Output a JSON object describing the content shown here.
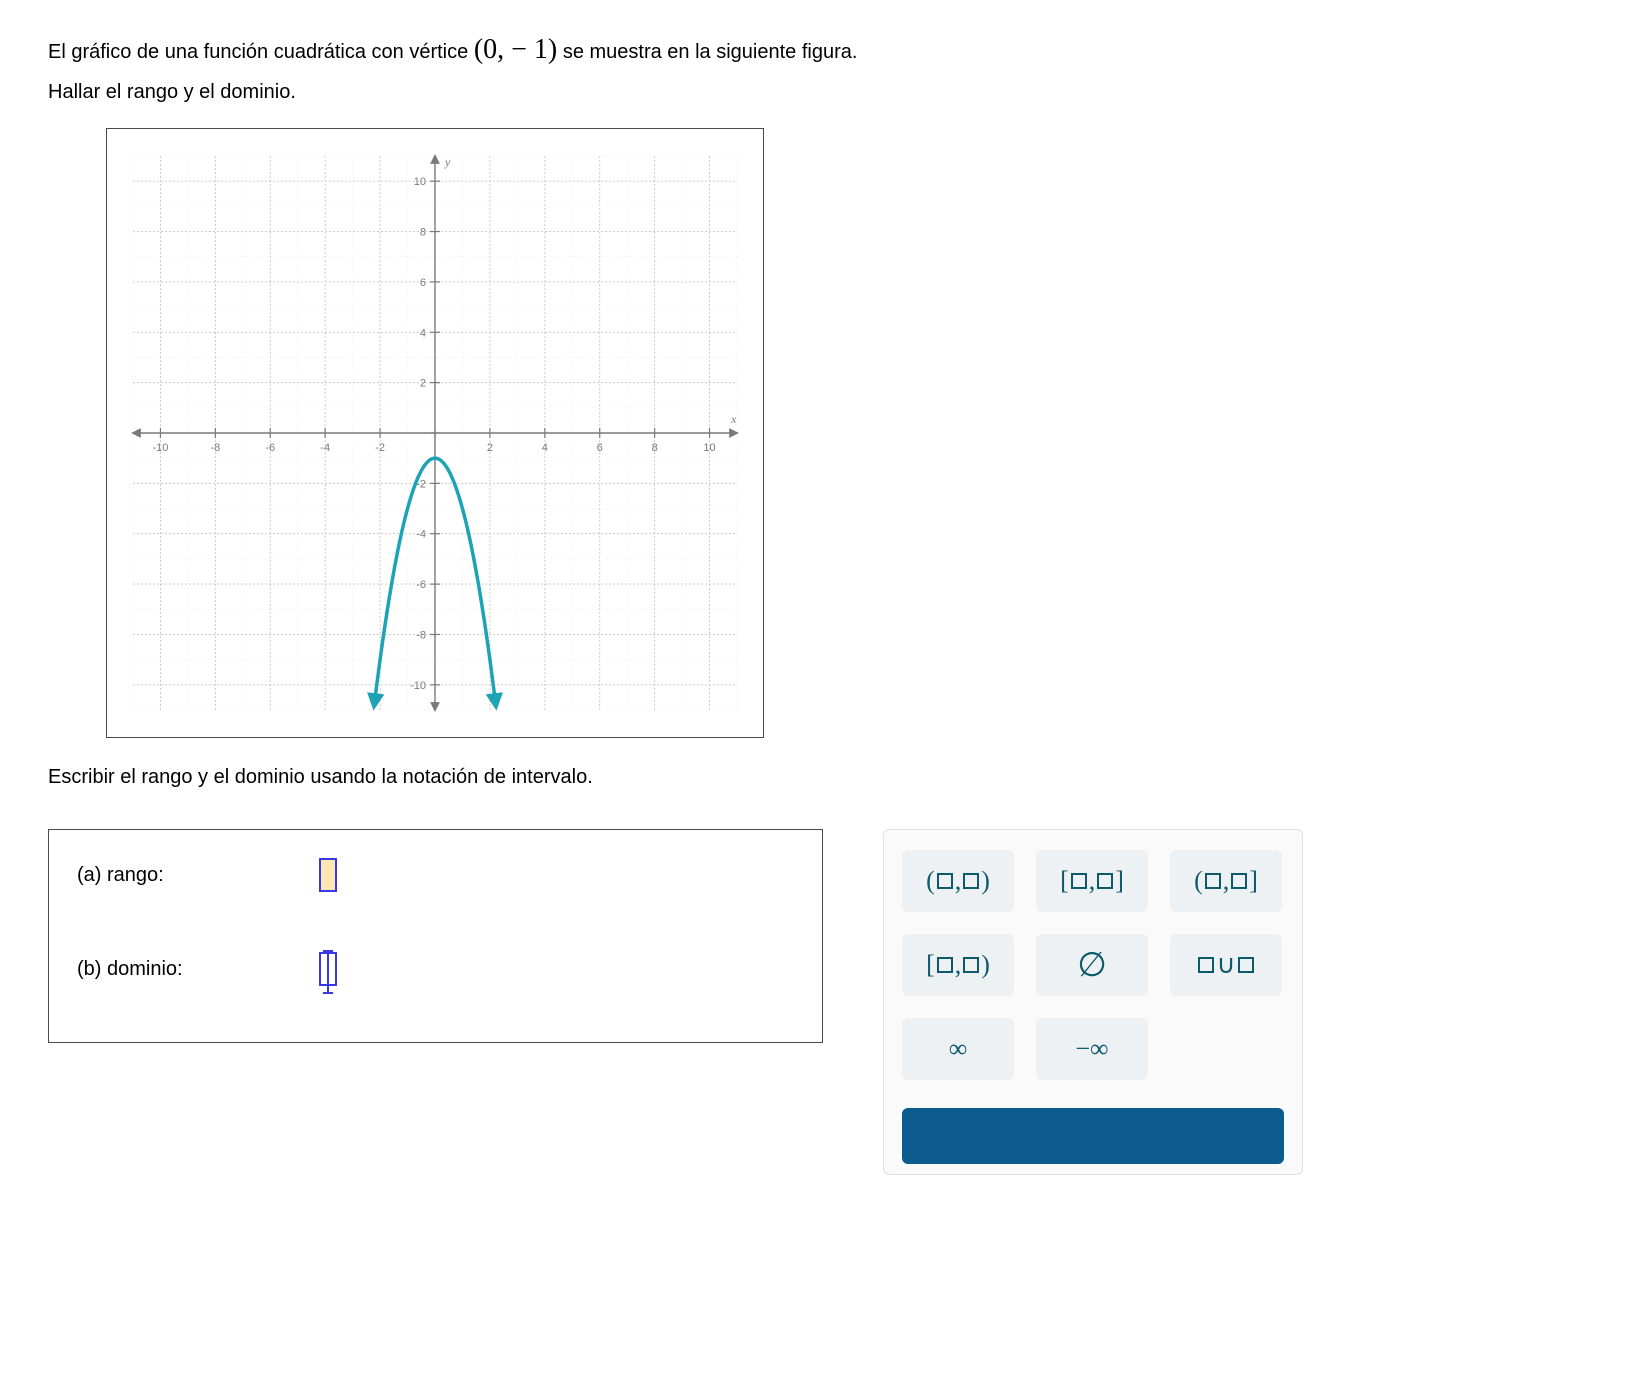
{
  "prompt": {
    "line1_pre": "El gráfico de una función cuadrática con vértice ",
    "vertex": "(0, − 1)",
    "line1_post": " se muestra en la siguiente figura.",
    "line2": "Hallar el rango y el dominio."
  },
  "instruction": "Escribir el rango y el dominio usando la notación de intervalo.",
  "answers": {
    "a_label": "(a)  rango:",
    "b_label": "(b)  dominio:"
  },
  "palette": {
    "open_open": "(□,□)",
    "closed_closed": "[□,□]",
    "open_closed": "(□,□]",
    "closed_open": "[□,□)",
    "empty_set": "∅",
    "union": "□∪□",
    "infinity": "∞",
    "neg_infinity": "−∞"
  },
  "chart": {
    "type": "scatter/line",
    "xlim": [
      -11,
      11
    ],
    "ylim": [
      -11,
      11
    ],
    "xtick_step": 2,
    "ytick_step": 2,
    "xtick_labels": [
      "-10",
      "-8",
      "-6",
      "-4",
      "-2",
      "2",
      "4",
      "6",
      "8",
      "10"
    ],
    "ytick_labels": [
      "-10",
      "-8",
      "-6",
      "-4",
      "-2",
      "2",
      "4",
      "6",
      "8",
      "10"
    ],
    "axis_label_x": "x",
    "axis_label_y": "y",
    "major_grid_color": "#c9c9c9",
    "minor_grid_color": "#e8e8e8",
    "axis_color": "#7a7a7a",
    "tick_label_color": "#7a7a7a",
    "tick_label_fontsize": 11,
    "background_color": "#ffffff",
    "curve": {
      "vertex": [
        0,
        -1
      ],
      "a": -2,
      "color": "#1ca3b5",
      "line_width": 3.5,
      "arrow_ends": true,
      "x_draw_range": [
        -2.2,
        2.2
      ]
    },
    "axis_arrows": true
  }
}
